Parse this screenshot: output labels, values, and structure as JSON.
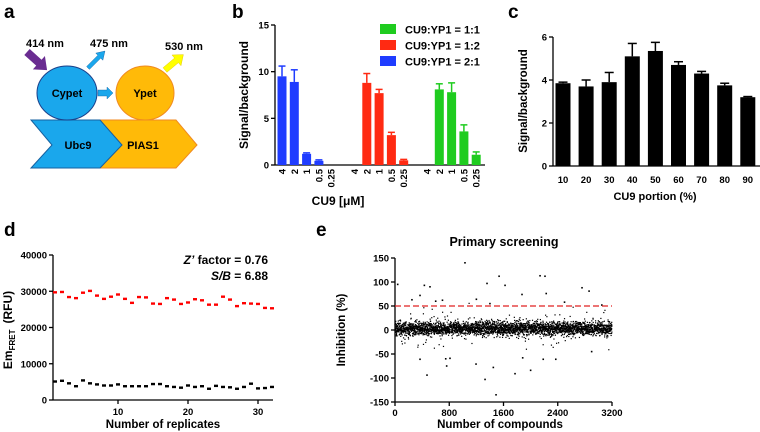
{
  "panels": {
    "a": "a",
    "b": "b",
    "c": "c",
    "d": "d",
    "e": "e"
  },
  "diagram": {
    "excitation": "414 nm",
    "cypet_emission": "475 nm",
    "ypet_emission": "530 nm",
    "donor": "Cypet",
    "acceptor": "Ypet",
    "donor_fusion": "Ubc9",
    "acceptor_fusion": "PIAS1",
    "colors": {
      "cyan": "#1aa7ec",
      "orange": "#ffba08",
      "purple": "#6a2c91",
      "yellow": "#ffff00"
    }
  },
  "chart_data": [
    {
      "id": "b",
      "type": "bar",
      "xlabel": "CU9 [μM]",
      "ylabel": "Signal/background",
      "ylim": [
        0,
        15
      ],
      "yticks": [
        0,
        5,
        10,
        15
      ],
      "categories": [
        "4",
        "2",
        "1",
        "0.5",
        "0.25"
      ],
      "legend_placement": "top-right",
      "series": [
        {
          "name": "CU9:YP1 = 2:1",
          "color": "#1f3cff",
          "values": [
            9.5,
            8.9,
            1.2,
            0.45,
            0
          ],
          "errors": [
            1.1,
            1.3,
            0.1,
            0.1,
            0
          ]
        },
        {
          "name": "CU9:YP1 = 1:2",
          "color": "#ff2a12",
          "values": [
            0,
            8.8,
            7.7,
            3.2,
            0.5
          ],
          "errors": [
            0,
            1.0,
            0.4,
            0.3,
            0.1
          ]
        },
        {
          "name": "CU9:YP1 = 1:1",
          "color": "#1fcc1f",
          "values": [
            0,
            8.1,
            7.8,
            3.6,
            1.1
          ],
          "errors": [
            0,
            0.6,
            1.0,
            0.7,
            0.3
          ]
        }
      ],
      "legend_order": [
        2,
        1,
        0
      ]
    },
    {
      "id": "c",
      "type": "bar",
      "xlabel": "CU9 portion (%)",
      "ylabel": "Signal/background",
      "ylim": [
        0,
        6
      ],
      "yticks": [
        0,
        2,
        4,
        6
      ],
      "categories": [
        "10",
        "20",
        "30",
        "40",
        "50",
        "60",
        "70",
        "80",
        "90"
      ],
      "color": "#000000",
      "values": [
        3.85,
        3.7,
        3.9,
        5.1,
        5.35,
        4.7,
        4.3,
        3.75,
        3.2
      ],
      "errors": [
        0.05,
        0.3,
        0.45,
        0.6,
        0.4,
        0.15,
        0.1,
        0.1,
        0.03
      ]
    },
    {
      "id": "d",
      "type": "scatter",
      "xlabel": "Number of replicates",
      "ylabel_main": "Em",
      "ylabel_sub": "FRET",
      "ylabel_unit": "(RFU)",
      "ylim": [
        0,
        40000
      ],
      "yticks": [
        0,
        10000,
        20000,
        30000,
        40000
      ],
      "xlim": [
        0,
        32
      ],
      "xticks": [
        10,
        20,
        30
      ],
      "annotations": {
        "zprime_label": "Z’",
        "zprime_text": " factor = 0.76",
        "sb_label": "S/B",
        "sb_text": " = 6.88"
      },
      "series": [
        {
          "color": "#ff0000",
          "x": [
            1,
            2,
            3,
            4,
            5,
            6,
            7,
            8,
            9,
            10,
            11,
            12,
            13,
            14,
            15,
            16,
            17,
            18,
            19,
            20,
            21,
            22,
            23,
            24,
            25,
            26,
            27,
            28,
            29,
            30,
            31,
            32
          ],
          "values": [
            29700,
            29800,
            28400,
            28100,
            29600,
            30100,
            28800,
            27900,
            28500,
            29100,
            27900,
            26800,
            28400,
            28300,
            26600,
            26500,
            28100,
            27700,
            26500,
            26900,
            27800,
            27500,
            26300,
            26300,
            28500,
            27700,
            25900,
            26700,
            26600,
            26500,
            25400,
            25300
          ]
        },
        {
          "color": "#000000",
          "x": [
            1,
            2,
            3,
            4,
            5,
            6,
            7,
            8,
            9,
            10,
            11,
            12,
            13,
            14,
            15,
            16,
            17,
            18,
            19,
            20,
            21,
            22,
            23,
            24,
            25,
            26,
            27,
            28,
            29,
            30,
            31,
            32
          ],
          "values": [
            5100,
            5300,
            4600,
            3800,
            5400,
            4600,
            4300,
            4000,
            4000,
            4300,
            3800,
            3800,
            3800,
            3800,
            4400,
            4400,
            3800,
            3600,
            3400,
            4000,
            3600,
            3800,
            3100,
            3900,
            3600,
            3500,
            3100,
            3600,
            4500,
            3200,
            3300,
            3600
          ]
        }
      ]
    },
    {
      "id": "e",
      "type": "scatter",
      "title": "Primary screening",
      "xlabel": "Number of compounds",
      "ylabel": "Inhibition (%)",
      "xlim": [
        0,
        3200
      ],
      "xticks": [
        0,
        800,
        1600,
        2400,
        3200
      ],
      "ylim": [
        -150,
        150
      ],
      "yticks": [
        -150,
        -100,
        -50,
        0,
        50,
        100,
        150
      ],
      "threshold": {
        "y": 50,
        "color": "#e02020",
        "style": "dashed"
      },
      "bulk_distribution": {
        "n": 3200,
        "mean": 3,
        "sd": 7
      },
      "outliers": {
        "x": [
          1032,
          433,
          516,
          1535,
          1357,
          1623,
          2139,
          2212,
          1873,
          2758,
          2862,
          369,
          250,
          2230,
          472,
          1328,
          1490,
          1770,
          2000,
          1195,
          762,
          1450,
          369,
          748,
          811,
          1883,
          2186,
          2371,
          40,
          600,
          1400,
          2500,
          3050,
          700,
          1200,
          2900
        ],
        "y": [
          140,
          93,
          90,
          112,
          97,
          93,
          113,
          112,
          74,
          88,
          81,
          72,
          63,
          76,
          -94,
          -103,
          -135,
          -91,
          -84,
          -71,
          -75,
          -78,
          -61,
          -60,
          -59,
          -58,
          -61,
          -61,
          95,
          60,
          55,
          58,
          52,
          62,
          64,
          -45
        ]
      }
    }
  ]
}
